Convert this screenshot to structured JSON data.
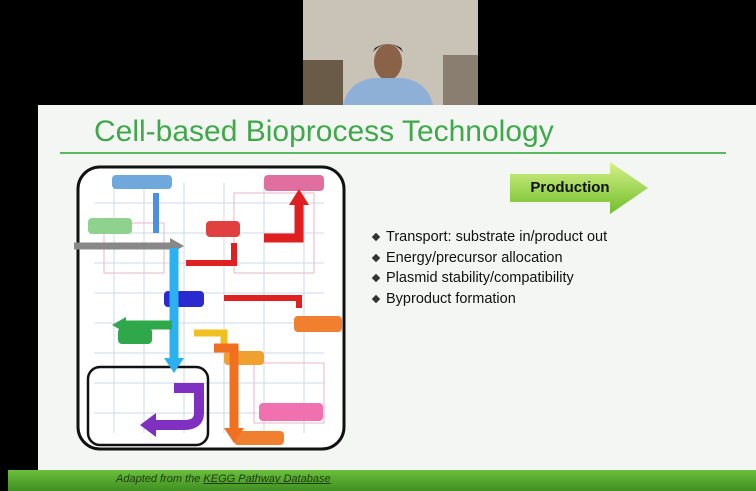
{
  "slide": {
    "title": "Cell-based Bioprocess Technology",
    "banner": "Production",
    "bullets": [
      "Transport: substrate in/product out",
      "Energy/precursor allocation",
      "Plasmid stability/compatibility",
      "Byproduct formation"
    ],
    "footer": {
      "prefix": "Adapted from the",
      "link": "KEGG Pathway Database"
    }
  }
}
